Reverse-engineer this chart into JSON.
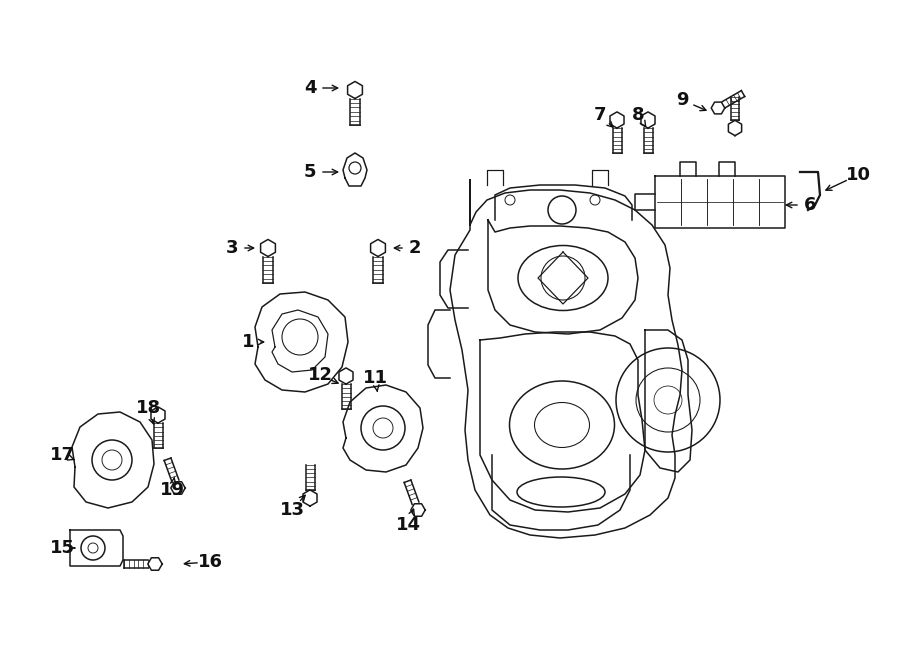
{
  "background_color": "#ffffff",
  "line_color": "#1a1a1a",
  "fig_width": 9.0,
  "fig_height": 6.62,
  "lw": 1.1
}
